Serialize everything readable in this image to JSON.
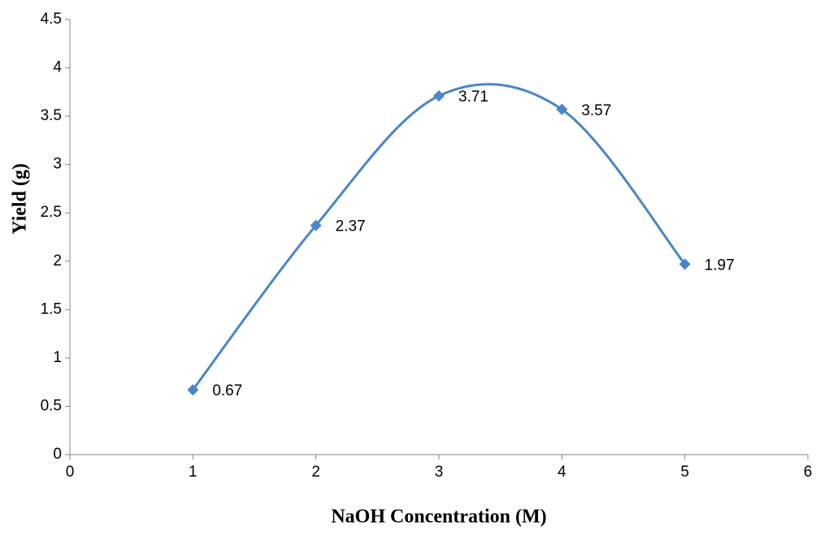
{
  "chart_data": {
    "type": "scatter",
    "x_label": "NaOH Concentration (M)",
    "y_label": "Yield (g)",
    "x": [
      1,
      2,
      3,
      4,
      5
    ],
    "series": [
      {
        "name": "Yield",
        "color": "#4a86c8",
        "values": [
          0.67,
          2.37,
          3.71,
          3.57,
          1.97
        ]
      }
    ],
    "smooth": true,
    "marker": "diamond",
    "data_labels": true,
    "legend": false,
    "grid": false,
    "xlim": [
      0,
      6
    ],
    "xticks": [
      0,
      1,
      2,
      3,
      4,
      5,
      6
    ],
    "ylim": [
      0,
      4.5
    ],
    "yticks": [
      0,
      0.5,
      1,
      1.5,
      2,
      2.5,
      3,
      3.5,
      4,
      4.5
    ]
  }
}
